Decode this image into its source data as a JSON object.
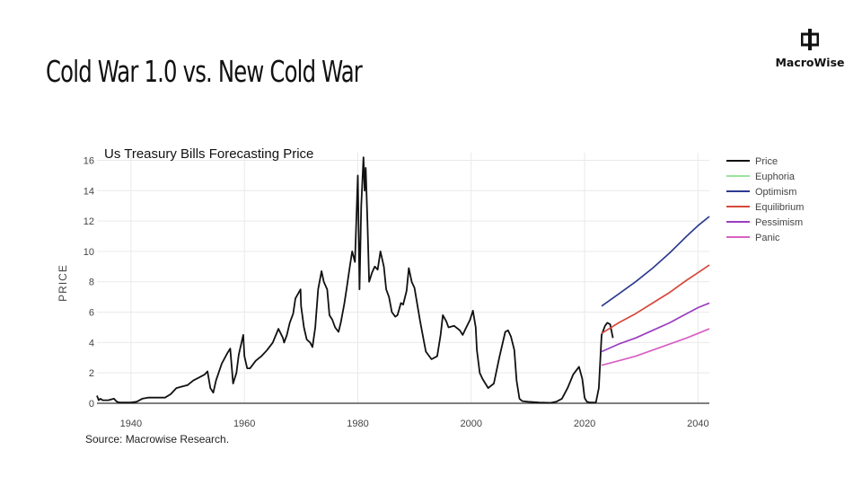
{
  "slide": {
    "title": "Cold War 1.0 vs. New Cold War",
    "logo_text": "MacroWise",
    "source": "Source: Macrowise Research."
  },
  "colors": {
    "price": "#111111",
    "euphoria": "#9be39b",
    "optimism": "#2e3c8f",
    "equilibrium": "#d6483b",
    "pessimism": "#9a3fbf",
    "panic": "#d860c4",
    "grid": "#e9e9e9"
  },
  "chart_data": {
    "type": "line",
    "title": "Us Treasury Bills Forecasting Price",
    "xlabel": "",
    "ylabel": "PRICE",
    "xlim": [
      1934,
      2042
    ],
    "ylim": [
      0,
      16.5
    ],
    "xticks": [
      1940,
      1960,
      1980,
      2000,
      2020,
      2040
    ],
    "yticks": [
      0,
      2,
      4,
      6,
      8,
      10,
      12,
      14,
      16
    ],
    "grid": true,
    "legend_position": "right",
    "series": [
      {
        "name": "Price",
        "color_key": "price",
        "x": [
          1934,
          1934.3,
          1934.6,
          1935,
          1936,
          1937,
          1937.5,
          1938,
          1939,
          1940,
          1941,
          1942,
          1943,
          1946,
          1947,
          1948,
          1949,
          1950,
          1951,
          1952,
          1953,
          1953.5,
          1954,
          1954.5,
          1955,
          1956,
          1957,
          1957.5,
          1958,
          1958.6,
          1959,
          1959.8,
          1960,
          1960.5,
          1961,
          1962,
          1963,
          1964,
          1965,
          1966,
          1966.8,
          1967,
          1967.5,
          1968,
          1968.6,
          1969,
          1969.9,
          1970,
          1970.5,
          1971,
          1971.6,
          1972,
          1972.5,
          1973,
          1973.6,
          1974,
          1974.6,
          1975,
          1975.5,
          1976,
          1976.6,
          1977,
          1977.6,
          1978,
          1978.6,
          1979,
          1979.5,
          1980,
          1980.3,
          1980.6,
          1981,
          1981.2,
          1981.4,
          1981.7,
          1982,
          1982.5,
          1983,
          1983.5,
          1984,
          1984.6,
          1985,
          1985.5,
          1986,
          1986.6,
          1987,
          1987.6,
          1988,
          1988.6,
          1989,
          1989.5,
          1990,
          1991,
          1991.6,
          1992,
          1993,
          1994,
          1994.6,
          1995,
          1995.6,
          1996,
          1997,
          1998,
          1998.5,
          1999,
          1999.8,
          2000.3,
          2000.8,
          2001,
          2001.5,
          2002,
          2003,
          2004,
          2005,
          2006,
          2006.5,
          2007,
          2007.6,
          2008,
          2008.5,
          2009,
          2010,
          2012,
          2014,
          2015,
          2016,
          2017,
          2018,
          2019,
          2019.6,
          2020,
          2020.4,
          2021,
          2022,
          2022.5,
          2023,
          2023.6,
          2024,
          2024.5,
          2025
        ],
        "values": [
          0.5,
          0.2,
          0.3,
          0.2,
          0.2,
          0.3,
          0.1,
          0.05,
          0.05,
          0.05,
          0.1,
          0.3,
          0.37,
          0.37,
          0.6,
          1.0,
          1.1,
          1.2,
          1.5,
          1.7,
          1.9,
          2.1,
          1.0,
          0.7,
          1.5,
          2.6,
          3.3,
          3.6,
          1.3,
          2.0,
          3.2,
          4.5,
          3.1,
          2.3,
          2.3,
          2.8,
          3.1,
          3.5,
          4.0,
          4.9,
          4.3,
          4.0,
          4.5,
          5.3,
          5.9,
          6.9,
          7.5,
          6.4,
          5.0,
          4.2,
          4.0,
          3.7,
          5.0,
          7.5,
          8.7,
          8.0,
          7.5,
          5.8,
          5.5,
          5.0,
          4.7,
          5.3,
          6.5,
          7.5,
          9.0,
          10.0,
          9.3,
          15.0,
          7.5,
          13.0,
          16.2,
          14.0,
          15.5,
          12.0,
          8.0,
          8.6,
          9.0,
          8.8,
          10.0,
          9.0,
          7.5,
          7.0,
          6.0,
          5.7,
          5.8,
          6.6,
          6.5,
          7.4,
          8.9,
          8.0,
          7.6,
          5.4,
          4.2,
          3.4,
          2.9,
          3.1,
          4.5,
          5.8,
          5.4,
          5.0,
          5.1,
          4.8,
          4.5,
          4.9,
          5.5,
          6.1,
          5.0,
          3.5,
          2.0,
          1.6,
          1.0,
          1.3,
          3.1,
          4.7,
          4.8,
          4.4,
          3.5,
          1.5,
          0.3,
          0.14,
          0.1,
          0.05,
          0.03,
          0.1,
          0.3,
          1.0,
          1.9,
          2.4,
          1.6,
          0.35,
          0.1,
          0.05,
          0.06,
          1.0,
          4.5,
          5.1,
          5.3,
          5.2,
          4.3
        ]
      },
      {
        "name": "Euphoria",
        "color_key": "euphoria",
        "x": [],
        "values": []
      },
      {
        "name": "Optimism",
        "color_key": "optimism",
        "x": [
          2023,
          2026,
          2029,
          2032,
          2035,
          2038,
          2040,
          2042
        ],
        "values": [
          6.4,
          7.2,
          8.0,
          8.9,
          9.9,
          11.0,
          11.7,
          12.3
        ]
      },
      {
        "name": "Equilibrium",
        "color_key": "equilibrium",
        "x": [
          2023,
          2026,
          2029,
          2032,
          2035,
          2038,
          2040,
          2042
        ],
        "values": [
          4.6,
          5.3,
          5.9,
          6.6,
          7.3,
          8.1,
          8.6,
          9.1
        ]
      },
      {
        "name": "Pessimism",
        "color_key": "pessimism",
        "x": [
          2023,
          2026,
          2029,
          2032,
          2035,
          2038,
          2040,
          2042
        ],
        "values": [
          3.4,
          3.9,
          4.3,
          4.8,
          5.3,
          5.9,
          6.3,
          6.6
        ]
      },
      {
        "name": "Panic",
        "color_key": "panic",
        "x": [
          2023,
          2026,
          2029,
          2032,
          2035,
          2038,
          2040,
          2042
        ],
        "values": [
          2.5,
          2.8,
          3.1,
          3.5,
          3.9,
          4.3,
          4.6,
          4.9
        ]
      }
    ]
  }
}
